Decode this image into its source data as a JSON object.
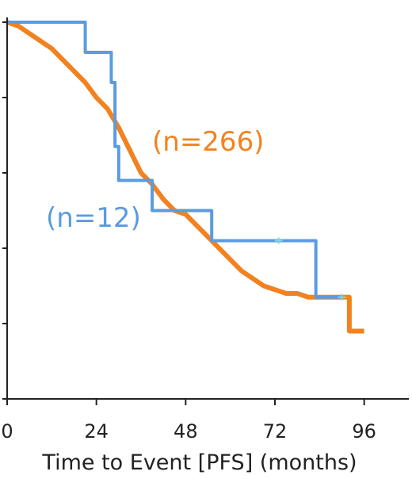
{
  "chart_data": {
    "type": "line",
    "title": "",
    "xlabel": "Time to Event [PFS] (months)",
    "ylabel": "",
    "xlim": [
      0,
      108
    ],
    "ylim": [
      0,
      1
    ],
    "x_ticks": [
      0,
      24,
      48,
      72,
      96
    ],
    "x_tick_labels": [
      "0",
      "24",
      "48",
      "72",
      "96"
    ],
    "y_ticks": [
      0,
      0.2,
      0.4,
      0.6,
      0.8,
      1.0
    ],
    "y_tick_labels": [],
    "grid": false,
    "series": [
      {
        "name": "(n=266)",
        "color": "#F28220",
        "step": false,
        "x": [
          0,
          3,
          6,
          9,
          12,
          15,
          18,
          21,
          24,
          27,
          30,
          33,
          36,
          39,
          42,
          45,
          48,
          51,
          54,
          57,
          60,
          63,
          66,
          69,
          72,
          75,
          78,
          81,
          84,
          87,
          90,
          92,
          92,
          93,
          96
        ],
        "values": [
          1.0,
          0.99,
          0.97,
          0.95,
          0.93,
          0.9,
          0.87,
          0.84,
          0.8,
          0.77,
          0.72,
          0.66,
          0.6,
          0.57,
          0.53,
          0.5,
          0.49,
          0.46,
          0.43,
          0.4,
          0.37,
          0.34,
          0.32,
          0.3,
          0.29,
          0.28,
          0.28,
          0.27,
          0.27,
          0.27,
          0.27,
          0.27,
          0.18,
          0.18,
          0.18
        ]
      },
      {
        "name": "(n=12)",
        "color": "#5B9BE0",
        "step": true,
        "x": [
          0,
          21,
          28,
          29,
          30,
          39,
          55,
          83,
          90
        ],
        "values": [
          1.0,
          0.92,
          0.84,
          0.67,
          0.58,
          0.5,
          0.42,
          0.27,
          0.27
        ],
        "censor_marks_x": [
          73,
          90
        ]
      }
    ]
  }
}
